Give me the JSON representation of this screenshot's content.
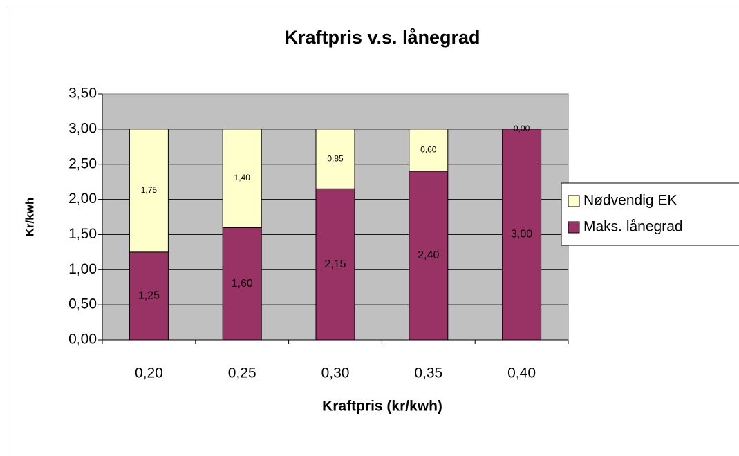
{
  "chart_data": {
    "type": "stacked_bar",
    "title": "Kraftpris v.s. lånegrad",
    "x_label": "Kraftpris (kr/kwh)",
    "y_label": "Kr/kwh",
    "categories": [
      "0,20",
      "0,25",
      "0,30",
      "0,35",
      "0,40"
    ],
    "series": [
      {
        "name": "Maks. lånegrad",
        "color": "#993366",
        "values": [
          1.25,
          1.6,
          2.15,
          2.4,
          3.0
        ],
        "value_labels": [
          "1,25",
          "1,60",
          "2,15",
          "2,40",
          "3,00"
        ]
      },
      {
        "name": "Nødvendig EK",
        "color": "#ffffcc",
        "values": [
          1.75,
          1.4,
          0.85,
          0.6,
          0.0
        ],
        "value_labels": [
          "1,75",
          "1,40",
          "0,85",
          "0,60",
          "0,00"
        ]
      }
    ],
    "ylim": [
      0,
      3.5
    ],
    "yticks": [
      {
        "value": 0,
        "label": "0,00"
      },
      {
        "value": 0.5,
        "label": "0,50"
      },
      {
        "value": 1,
        "label": "1,00"
      },
      {
        "value": 1.5,
        "label": "1,50"
      },
      {
        "value": 2,
        "label": "2,00"
      },
      {
        "value": 2.5,
        "label": "2,50"
      },
      {
        "value": 3,
        "label": "3,00"
      },
      {
        "value": 3.5,
        "label": "3,50"
      }
    ],
    "grid": true,
    "legend": "right"
  }
}
